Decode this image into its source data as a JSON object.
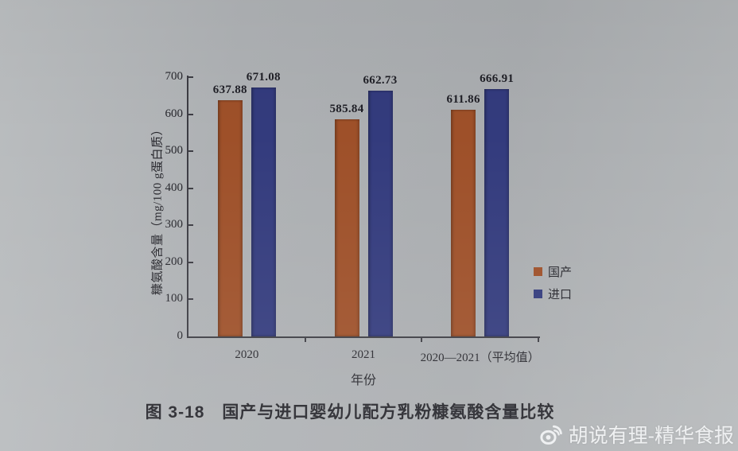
{
  "figure": {
    "caption": "图 3-18　国产与进口婴幼儿配方乳粉糠氨酸含量比较"
  },
  "watermark": {
    "icon": "weibo-icon",
    "text": "胡说有理-精华食报"
  },
  "chart_data": {
    "type": "bar",
    "title": "",
    "categories": [
      "2020",
      "2021",
      "2020—2021（平均值）"
    ],
    "series": [
      {
        "name": "国产",
        "color": "#9e5029",
        "values": [
          637.88,
          585.84,
          611.86
        ]
      },
      {
        "name": "进口",
        "color": "#333b7d",
        "values": [
          671.08,
          662.73,
          666.91
        ]
      }
    ],
    "xlabel": "年份",
    "ylabel": "糠氨酸含量（mg/100 g蛋白质）",
    "ylim": [
      0,
      700
    ],
    "yticks": [
      0,
      100,
      200,
      300,
      400,
      500,
      600,
      700
    ],
    "grid": false,
    "legend_position": "right-middle",
    "value_labels_shown": true
  }
}
